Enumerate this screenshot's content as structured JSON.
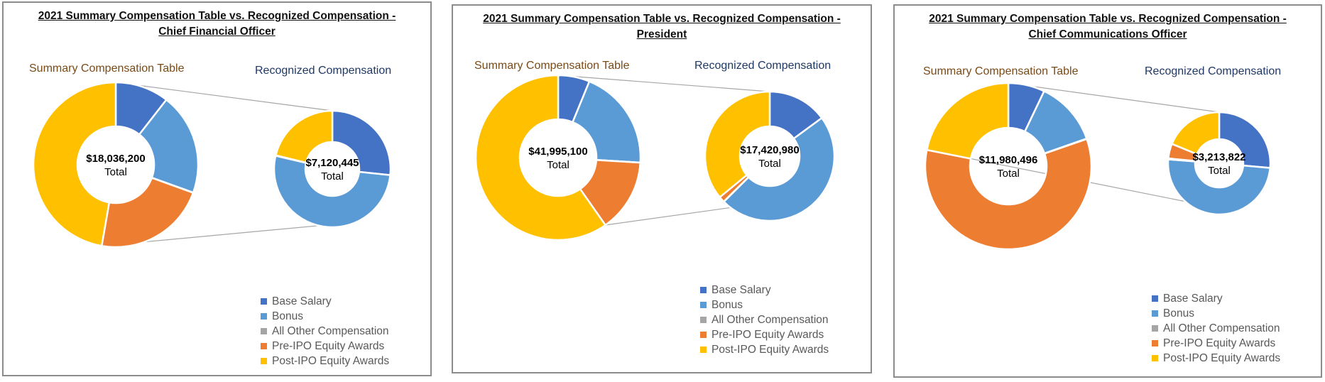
{
  "colors": {
    "base_salary": "#4472C4",
    "bonus": "#5B9BD5",
    "all_other": "#A5A5A5",
    "pre_ipo": "#ED7D31",
    "post_ipo": "#FFC000",
    "connector": "#a6a6a6"
  },
  "legend": [
    "Base Salary",
    "Bonus",
    "All Other Compensation",
    "Pre-IPO Equity Awards",
    "Post-IPO Equity Awards"
  ],
  "chart_data": [
    {
      "type": "pie",
      "title": [
        "2021 Summary Compensation Table vs. Recognized Compensation -",
        "Chief Financial Officer"
      ],
      "sct_label": "Summary Compensation Table",
      "rc_label": "Recognized Compensation",
      "sct": {
        "total_label": "$18,036,200",
        "total_word": "Total",
        "categories": [
          "Base Salary",
          "Bonus",
          "All Other Compensation",
          "Pre-IPO Equity Awards",
          "Post-IPO Equity Awards"
        ],
        "values": [
          1900000,
          3600000,
          10000,
          4000000,
          8526200
        ]
      },
      "rc": {
        "total_label": "$7,120,445",
        "total_word": "Total",
        "categories": [
          "Base Salary",
          "Bonus",
          "All Other Compensation",
          "Pre-IPO Equity Awards",
          "Post-IPO Equity Awards"
        ],
        "values": [
          1900000,
          3700000,
          10000,
          0,
          1510445
        ]
      }
    },
    {
      "type": "pie",
      "title": [
        "2021 Summary Compensation Table vs. Recognized Compensation -",
        "President"
      ],
      "sct_label": "Summary Compensation Table",
      "rc_label": "Recognized Compensation",
      "sct": {
        "total_label": "$41,995,100",
        "total_word": "Total",
        "categories": [
          "Base Salary",
          "Bonus",
          "All Other Compensation",
          "Pre-IPO Equity Awards",
          "Post-IPO Equity Awards"
        ],
        "values": [
          2600000,
          8300000,
          10000,
          6000000,
          25085100
        ]
      },
      "rc": {
        "total_label": "$17,420,980",
        "total_word": "Total",
        "categories": [
          "Base Salary",
          "Bonus",
          "All Other Compensation",
          "Pre-IPO Equity Awards",
          "Post-IPO Equity Awards"
        ],
        "values": [
          2600000,
          8300000,
          10000,
          250000,
          6260980
        ]
      }
    },
    {
      "type": "pie",
      "title": [
        "2021 Summary Compensation Table vs. Recognized Compensation -",
        "Chief Communications Officer"
      ],
      "sct_label": "Summary Compensation Table",
      "rc_label": "Recognized Compensation",
      "sct": {
        "total_label": "$11,980,496",
        "total_word": "Total",
        "categories": [
          "Base Salary",
          "Bonus",
          "All Other Compensation",
          "Pre-IPO Equity Awards",
          "Post-IPO Equity Awards"
        ],
        "values": [
          850000,
          1500000,
          10000,
          7000000,
          2620496
        ]
      },
      "rc": {
        "total_label": "$3,213,822",
        "total_word": "Total",
        "categories": [
          "Base Salary",
          "Bonus",
          "All Other Compensation",
          "Pre-IPO Equity Awards",
          "Post-IPO Equity Awards"
        ],
        "values": [
          850000,
          1600000,
          10000,
          150000,
          603822
        ]
      }
    }
  ]
}
